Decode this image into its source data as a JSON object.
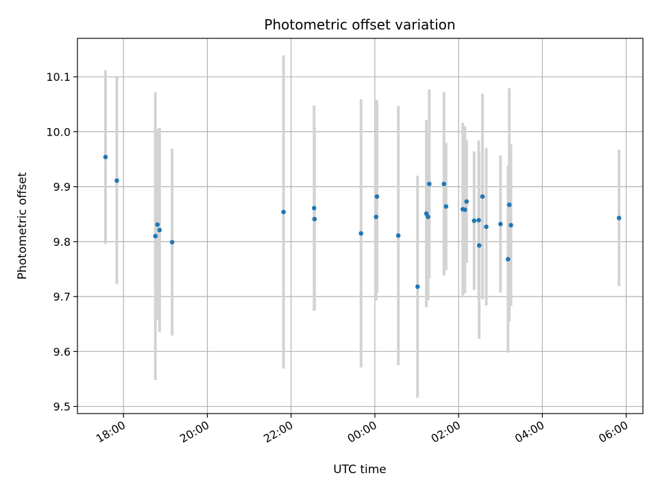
{
  "chart_data": {
    "type": "scatter",
    "title": "Photometric offset variation",
    "xlabel": "UTC time",
    "ylabel": "Photometric offset",
    "x_unit": "hours",
    "xlim": [
      16.9,
      30.4
    ],
    "ylim": [
      9.487,
      10.17
    ],
    "grid": true,
    "x_ticks": [
      {
        "value": 18,
        "label": "18:00"
      },
      {
        "value": 20,
        "label": "20:00"
      },
      {
        "value": 22,
        "label": "22:00"
      },
      {
        "value": 24,
        "label": "00:00"
      },
      {
        "value": 26,
        "label": "02:00"
      },
      {
        "value": 28,
        "label": "04:00"
      },
      {
        "value": 30,
        "label": "06:00"
      }
    ],
    "y_ticks": [
      {
        "value": 9.5,
        "label": "9.5"
      },
      {
        "value": 9.6,
        "label": "9.6"
      },
      {
        "value": 9.7,
        "label": "9.7"
      },
      {
        "value": 9.8,
        "label": "9.8"
      },
      {
        "value": 9.9,
        "label": "9.9"
      },
      {
        "value": 10.0,
        "label": "10.0"
      },
      {
        "value": 10.1,
        "label": "10.1"
      }
    ],
    "point_color": "#1f77b4",
    "errorbar_color": "#d3d3d3",
    "points": [
      {
        "x": 17.57,
        "y": 9.954,
        "err": 0.158
      },
      {
        "x": 17.84,
        "y": 9.911,
        "err": 0.188
      },
      {
        "x": 18.76,
        "y": 9.81,
        "err": 0.262
      },
      {
        "x": 18.81,
        "y": 9.831,
        "err": 0.174
      },
      {
        "x": 18.86,
        "y": 9.821,
        "err": 0.186
      },
      {
        "x": 19.16,
        "y": 9.799,
        "err": 0.17
      },
      {
        "x": 21.82,
        "y": 9.854,
        "err": 0.285
      },
      {
        "x": 22.55,
        "y": 9.861,
        "err": 0.187
      },
      {
        "x": 22.56,
        "y": 9.841,
        "err": 0.166
      },
      {
        "x": 23.67,
        "y": 9.815,
        "err": 0.244
      },
      {
        "x": 24.03,
        "y": 9.845,
        "err": 0.152
      },
      {
        "x": 24.05,
        "y": 9.882,
        "err": 0.176
      },
      {
        "x": 24.56,
        "y": 9.811,
        "err": 0.236
      },
      {
        "x": 25.02,
        "y": 9.718,
        "err": 0.202
      },
      {
        "x": 25.23,
        "y": 9.851,
        "err": 0.17
      },
      {
        "x": 25.27,
        "y": 9.845,
        "err": 0.152
      },
      {
        "x": 25.3,
        "y": 9.905,
        "err": 0.172
      },
      {
        "x": 25.65,
        "y": 9.905,
        "err": 0.167
      },
      {
        "x": 25.7,
        "y": 9.864,
        "err": 0.116
      },
      {
        "x": 26.1,
        "y": 9.859,
        "err": 0.157
      },
      {
        "x": 26.15,
        "y": 9.858,
        "err": 0.152
      },
      {
        "x": 26.19,
        "y": 9.873,
        "err": 0.112
      },
      {
        "x": 26.37,
        "y": 9.838,
        "err": 0.126
      },
      {
        "x": 26.48,
        "y": 9.839,
        "err": 0.145
      },
      {
        "x": 26.49,
        "y": 9.793,
        "err": 0.17
      },
      {
        "x": 26.57,
        "y": 9.882,
        "err": 0.187
      },
      {
        "x": 26.66,
        "y": 9.827,
        "err": 0.143
      },
      {
        "x": 27.0,
        "y": 9.832,
        "err": 0.125
      },
      {
        "x": 27.18,
        "y": 9.768,
        "err": 0.17
      },
      {
        "x": 27.21,
        "y": 9.867,
        "err": 0.212
      },
      {
        "x": 27.25,
        "y": 9.83,
        "err": 0.147
      },
      {
        "x": 29.83,
        "y": 9.843,
        "err": 0.124
      }
    ]
  }
}
